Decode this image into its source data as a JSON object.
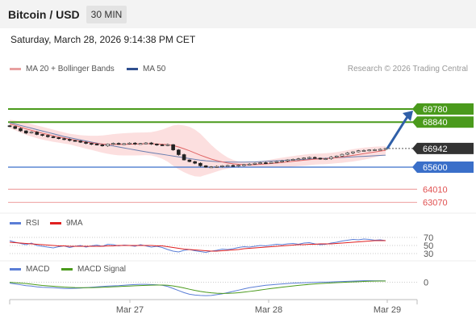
{
  "header": {
    "title": "Bitcoin / USD",
    "timeframe": "30 MIN"
  },
  "datetime": "Saturday, March 28, 2026 9:14:38 PM CET",
  "legend_main": {
    "ma20": "MA 20 + Bollinger Bands",
    "ma50": "MA 50",
    "credit": "Research © 2026 Trading Central"
  },
  "legend_rsi": {
    "rsi": "RSI",
    "ma9": "9MA"
  },
  "legend_macd": {
    "macd": "MACD",
    "signal": "MACD Signal"
  },
  "colors": {
    "green": "#4a9a1c",
    "blue": "#3a6fc9",
    "red": "#e8a3a3",
    "dark": "#333333",
    "arrow": "#2f5fa8",
    "band": "#fbd9d9",
    "ma20": "#e06666",
    "ma50": "#6a7fb0"
  },
  "chart_data": [
    {
      "type": "candlestick",
      "instrument": "Bitcoin / USD",
      "price_levels": [
        {
          "label": "69780",
          "value": 69780,
          "kind": "resistance",
          "color": "#4a9a1c"
        },
        {
          "label": "68840",
          "value": 68840,
          "kind": "resistance",
          "color": "#4a9a1c"
        },
        {
          "label": "66942",
          "value": 66942,
          "kind": "last",
          "color": "#333333"
        },
        {
          "label": "65600",
          "value": 65600,
          "kind": "pivot",
          "color": "#3a6fc9"
        },
        {
          "label": "64010",
          "value": 64010,
          "kind": "support",
          "color": "#e06060"
        },
        {
          "label": "63070",
          "value": 63070,
          "kind": "support",
          "color": "#e06060"
        }
      ],
      "x_ticks": [
        "Mar 27",
        "Mar 28",
        "Mar 29"
      ],
      "close": [
        68520,
        68380,
        68210,
        68050,
        68120,
        67950,
        67880,
        67790,
        67720,
        67650,
        67600,
        67520,
        67480,
        67390,
        67310,
        67260,
        67200,
        67130,
        67260,
        67310,
        67250,
        67290,
        67330,
        67270,
        67300,
        67340,
        67260,
        67210,
        67160,
        67220,
        66840,
        66500,
        66120,
        66000,
        65880,
        65700,
        65600,
        65620,
        65650,
        65700,
        65720,
        65680,
        65740,
        65780,
        65820,
        65880,
        65920,
        65900,
        65950,
        66000,
        66050,
        66120,
        66160,
        66200,
        66260,
        66300,
        66250,
        66180,
        66210,
        66320,
        66400,
        66520,
        66620,
        66700,
        66780,
        66800,
        66840,
        66860,
        66880,
        66942
      ],
      "ma50": [
        68800,
        68700,
        68600,
        68500,
        68400,
        68300,
        68200,
        68100,
        68000,
        67900,
        67800,
        67720,
        67640,
        67560,
        67480,
        67400,
        67330,
        67260,
        67190,
        67120,
        67050,
        66980,
        66910,
        66840,
        66770,
        66700,
        66640,
        66580,
        66520,
        66460,
        66400,
        66340,
        66280,
        66220,
        66160,
        66100,
        66060,
        66030,
        66000,
        65980,
        65970,
        65960,
        65960,
        65960,
        65970,
        65980,
        66000,
        66020,
        66040,
        66060,
        66080,
        66100,
        66120,
        66140,
        66160,
        66180,
        66200,
        66220,
        66240,
        66260,
        66280,
        66300,
        66320,
        66340,
        66360,
        66380,
        66400,
        66420,
        66440,
        66460
      ],
      "ma20": [
        68700,
        68600,
        68480,
        68360,
        68250,
        68140,
        68040,
        67950,
        67860,
        67780,
        67700,
        67620,
        67540,
        67470,
        67400,
        67350,
        67300,
        67260,
        67240,
        67230,
        67230,
        67240,
        67250,
        67260,
        67270,
        67280,
        67280,
        67270,
        67250,
        67220,
        67150,
        67050,
        66920,
        66780,
        66620,
        66460,
        66320,
        66180,
        66070,
        65980,
        65900,
        65840,
        65800,
        65780,
        65770,
        65780,
        65800,
        65830,
        65860,
        65900,
        65940,
        65980,
        66020,
        66060,
        66100,
        66140,
        66170,
        66190,
        66210,
        66240,
        66280,
        66330,
        66390,
        66450,
        66510,
        66570,
        66630,
        66690,
        66750,
        66810
      ],
      "boll_upper": [
        69000,
        68950,
        68880,
        68800,
        68700,
        68600,
        68500,
        68400,
        68300,
        68200,
        68100,
        68000,
        67950,
        67900,
        67870,
        67860,
        67860,
        67880,
        67920,
        67970,
        68010,
        68040,
        68060,
        68080,
        68090,
        68100,
        68120,
        68200,
        68300,
        68450,
        68600,
        68650,
        68600,
        68500,
        68300,
        68000,
        67600,
        67200,
        66850,
        66550,
        66300,
        66120,
        66000,
        65960,
        65950,
        65980,
        66020,
        66080,
        66150,
        66220,
        66280,
        66340,
        66400,
        66450,
        66500,
        66540,
        66560,
        66580,
        66600,
        66630,
        66680,
        66750,
        66820,
        66890,
        66950,
        67000,
        67040,
        67070,
        67090,
        67100
      ],
      "boll_lower": [
        68400,
        68250,
        68080,
        67920,
        67800,
        67680,
        67580,
        67500,
        67420,
        67360,
        67300,
        67240,
        67130,
        67040,
        66930,
        66840,
        66740,
        66640,
        66560,
        66490,
        66450,
        66440,
        66440,
        66440,
        66450,
        66460,
        66440,
        66340,
        66200,
        65990,
        65700,
        65450,
        65240,
        65060,
        64940,
        64920,
        65040,
        65160,
        65290,
        65410,
        65500,
        65560,
        65600,
        65600,
        65590,
        65580,
        65580,
        65580,
        65570,
        65580,
        65600,
        65620,
        65640,
        65670,
        65700,
        65740,
        65780,
        65800,
        65820,
        65850,
        65880,
        65910,
        65960,
        66010,
        66070,
        66140,
        66220,
        66310,
        66410,
        66520
      ],
      "forecast_arrow": {
        "from": 66942,
        "to": 69780
      }
    },
    {
      "type": "line",
      "name": "RSI",
      "levels": [
        {
          "label": "70",
          "value": 70
        },
        {
          "label": "50",
          "value": 50
        },
        {
          "label": "30",
          "value": 30
        }
      ],
      "ylim": [
        20,
        80
      ],
      "series": [
        {
          "name": "RSI",
          "color": "#5b7ed6",
          "values": [
            62,
            58,
            55,
            52,
            56,
            50,
            48,
            46,
            44,
            47,
            49,
            45,
            48,
            50,
            46,
            49,
            51,
            48,
            53,
            52,
            49,
            51,
            50,
            48,
            52,
            49,
            46,
            48,
            45,
            40,
            36,
            34,
            38,
            40,
            37,
            35,
            33,
            36,
            38,
            41,
            40,
            42,
            45,
            47,
            46,
            48,
            50,
            49,
            51,
            53,
            52,
            54,
            55,
            53,
            56,
            57,
            54,
            52,
            53,
            56,
            58,
            61,
            63,
            65,
            64,
            66,
            65,
            63,
            64,
            62
          ]
        },
        {
          "name": "9MA",
          "color": "#e02020",
          "values": [
            58,
            57,
            56,
            55,
            54,
            53,
            52,
            51,
            50,
            49,
            49,
            48,
            48,
            48,
            48,
            48,
            48,
            48,
            49,
            49,
            50,
            50,
            50,
            50,
            50,
            50,
            50,
            49,
            49,
            47,
            45,
            43,
            41,
            40,
            39,
            38,
            37,
            36,
            36,
            37,
            38,
            39,
            40,
            42,
            43,
            44,
            45,
            46,
            47,
            48,
            49,
            50,
            51,
            52,
            52,
            53,
            53,
            54,
            54,
            54,
            55,
            56,
            57,
            58,
            59,
            60,
            61,
            62,
            62,
            62
          ]
        }
      ]
    },
    {
      "type": "line",
      "name": "MACD",
      "levels": [
        {
          "label": "0",
          "value": 0
        }
      ],
      "ylim": [
        -400,
        150
      ],
      "series": [
        {
          "name": "MACD",
          "color": "#5b7ed6",
          "values": [
            -20,
            -40,
            -60,
            -80,
            -90,
            -110,
            -120,
            -125,
            -130,
            -140,
            -150,
            -150,
            -145,
            -140,
            -130,
            -120,
            -110,
            -100,
            -90,
            -85,
            -80,
            -70,
            -60,
            -55,
            -50,
            -50,
            -55,
            -60,
            -70,
            -100,
            -150,
            -200,
            -250,
            -290,
            -310,
            -320,
            -325,
            -320,
            -300,
            -280,
            -250,
            -220,
            -190,
            -160,
            -130,
            -110,
            -90,
            -70,
            -60,
            -50,
            -40,
            -30,
            -20,
            -15,
            -10,
            -5,
            0,
            5,
            5,
            10,
            15,
            20,
            25,
            30,
            35,
            40,
            40,
            38,
            36,
            35
          ]
        },
        {
          "name": "MACD Signal",
          "color": "#4a9a1c",
          "values": [
            0,
            -10,
            -20,
            -30,
            -45,
            -60,
            -75,
            -85,
            -95,
            -105,
            -115,
            -122,
            -128,
            -131,
            -131,
            -130,
            -126,
            -120,
            -114,
            -108,
            -102,
            -96,
            -90,
            -84,
            -78,
            -73,
            -69,
            -67,
            -67,
            -72,
            -88,
            -110,
            -138,
            -168,
            -196,
            -220,
            -240,
            -256,
            -265,
            -270,
            -268,
            -262,
            -252,
            -238,
            -222,
            -205,
            -186,
            -168,
            -150,
            -134,
            -118,
            -102,
            -88,
            -74,
            -62,
            -50,
            -40,
            -30,
            -22,
            -15,
            -8,
            -2,
            4,
            10,
            16,
            22,
            27,
            30,
            32,
            33
          ]
        }
      ]
    }
  ]
}
